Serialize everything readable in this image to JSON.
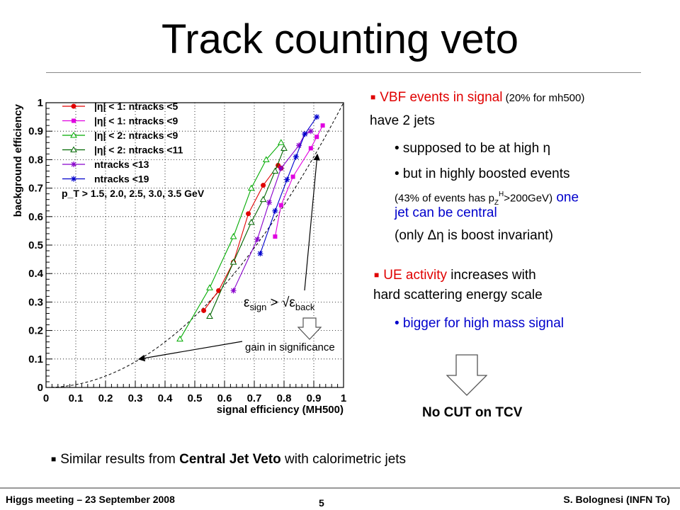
{
  "slide": {
    "title": "Track counting veto",
    "footer_left": "Higgs meeting – 23 September 2008",
    "footer_center": "5",
    "footer_right": "S. Bolognesi (INFN To)"
  },
  "bullets": {
    "b1_red": "VBF events in signal",
    "b1_small": " (20% for mh500)",
    "b1_line2": "have 2 jets",
    "b2": "• supposed to be at high η",
    "b3_line1": "• but in highly boosted events",
    "b3_small": "(43% of events has p",
    "b3_small_sub": "Z",
    "b3_small_sup": "H",
    "b3_small_end": ">200GeV)",
    "b3_blue_a": " one",
    "b3_blue_b": "jet can be central",
    "b3_line4": "(only Δη is boost invariant)",
    "b4_red": "UE activity",
    "b4_rest": " increases with",
    "b4_line2": "hard scattering energy scale",
    "b5": "• bigger for high mass signal",
    "nocut": "No CUT on TCV",
    "bottom_pre": "Similar results from ",
    "bottom_bold": "Central Jet Veto",
    "bottom_post": " with calorimetric jets",
    "eps_left": "ε",
    "eps_sub1": "sign",
    "eps_mid": " > √ε",
    "eps_sub2": "back",
    "gain": "gain in significance"
  },
  "chart_data": {
    "type": "line",
    "xlabel": "signal efficiency (MH500)",
    "ylabel": "background efficiency",
    "xlim": [
      0,
      1
    ],
    "ylim": [
      0,
      1
    ],
    "xticks": [
      "0",
      "0.1",
      "0.2",
      "0.3",
      "0.4",
      "0.5",
      "0.6",
      "0.7",
      "0.8",
      "0.9",
      "1"
    ],
    "yticks": [
      "0",
      "0.1",
      "0.2",
      "0.3",
      "0.4",
      "0.5",
      "0.6",
      "0.7",
      "0.8",
      "0.9",
      "1"
    ],
    "grid": true,
    "legend_position": "top-left",
    "annotation": "p_T > 1.5, 2.0, 2.5, 3.0, 3.5 GeV",
    "reference_curve": "y = x²",
    "series": [
      {
        "name": "|η| < 1: ntracks <5",
        "color": "#e00000",
        "marker": "circle",
        "x": [
          0.53,
          0.58,
          0.63,
          0.68,
          0.73,
          0.78,
          0.79
        ],
        "y": [
          0.27,
          0.34,
          0.44,
          0.61,
          0.71,
          0.78,
          0.77
        ]
      },
      {
        "name": "|η| < 1: ntracks <9",
        "color": "#e000e0",
        "marker": "square",
        "x": [
          0.77,
          0.79,
          0.83,
          0.89,
          0.91,
          0.93
        ],
        "y": [
          0.53,
          0.64,
          0.74,
          0.84,
          0.88,
          0.92
        ]
      },
      {
        "name": "|η| < 2: ntracks <9",
        "color": "#00aa00",
        "marker": "triangle-open",
        "x": [
          0.45,
          0.55,
          0.63,
          0.69,
          0.74,
          0.79
        ],
        "y": [
          0.17,
          0.35,
          0.53,
          0.7,
          0.8,
          0.86
        ]
      },
      {
        "name": "|η| < 2: ntracks <11",
        "color": "#006600",
        "marker": "triangle-open",
        "x": [
          0.55,
          0.63,
          0.69,
          0.73,
          0.77,
          0.8
        ],
        "y": [
          0.25,
          0.44,
          0.58,
          0.66,
          0.76,
          0.84
        ]
      },
      {
        "name": "ntracks <13",
        "color": "#8800cc",
        "marker": "star",
        "x": [
          0.63,
          0.71,
          0.75,
          0.79,
          0.85,
          0.87,
          0.89
        ],
        "y": [
          0.34,
          0.52,
          0.65,
          0.77,
          0.85,
          0.89,
          0.9
        ]
      },
      {
        "name": "ntracks <19",
        "color": "#0000cc",
        "marker": "star",
        "x": [
          0.72,
          0.77,
          0.81,
          0.84,
          0.87,
          0.91
        ],
        "y": [
          0.47,
          0.62,
          0.73,
          0.81,
          0.89,
          0.95
        ]
      }
    ]
  }
}
